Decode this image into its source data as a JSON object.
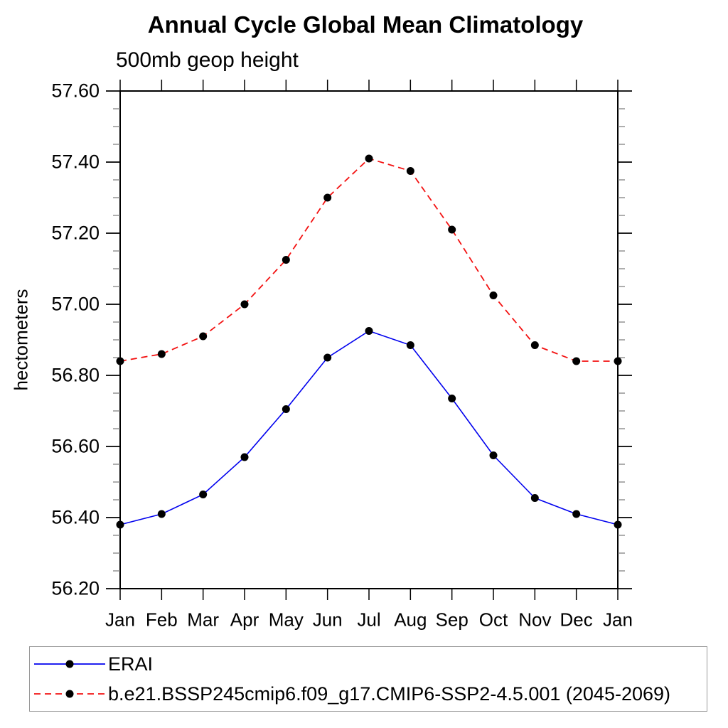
{
  "title": "Annual Cycle Global Mean Climatology",
  "subtitle": "500mb geop height",
  "colors": {
    "erai_line": "#0000ee",
    "model_line": "#f31111",
    "marker": "#000000",
    "axis": "#000000",
    "minor_tick": "#777777",
    "legend_border": "#999999"
  },
  "chart_data": {
    "type": "line",
    "title": "Annual Cycle Global Mean Climatology",
    "subtitle": "500mb geop height",
    "ylabel": "hectometers",
    "ylim": [
      56.2,
      57.6
    ],
    "ytick_interval": 0.2,
    "yminor_interval": 0.05,
    "y_tick_labels": [
      "57.60",
      "57.40",
      "57.20",
      "57.00",
      "56.80",
      "56.60",
      "56.40",
      "56.20"
    ],
    "x_categories": [
      "Jan",
      "Feb",
      "Mar",
      "Apr",
      "May",
      "Jun",
      "Jul",
      "Aug",
      "Sep",
      "Oct",
      "Nov",
      "Dec",
      "Jan"
    ],
    "grid": false,
    "legend_position": "bottom-left-box",
    "series": [
      {
        "id": "erai",
        "name": "ERAI",
        "color": "#0000ee",
        "style": "solid",
        "marker": "filled-circle",
        "values": [
          56.38,
          56.41,
          56.465,
          56.57,
          56.705,
          56.85,
          56.925,
          56.885,
          56.735,
          56.575,
          56.455,
          56.41,
          56.38
        ]
      },
      {
        "id": "model",
        "name": "b.e21.BSSP245cmip6.f09_g17.CMIP6-SSP2-4.5.001 (2045-2069)",
        "color": "#f31111",
        "style": "dashed",
        "marker": "filled-circle",
        "values": [
          56.84,
          56.86,
          56.91,
          57.0,
          57.125,
          57.3,
          57.41,
          57.375,
          57.21,
          57.025,
          56.885,
          56.84,
          56.84
        ]
      }
    ]
  }
}
